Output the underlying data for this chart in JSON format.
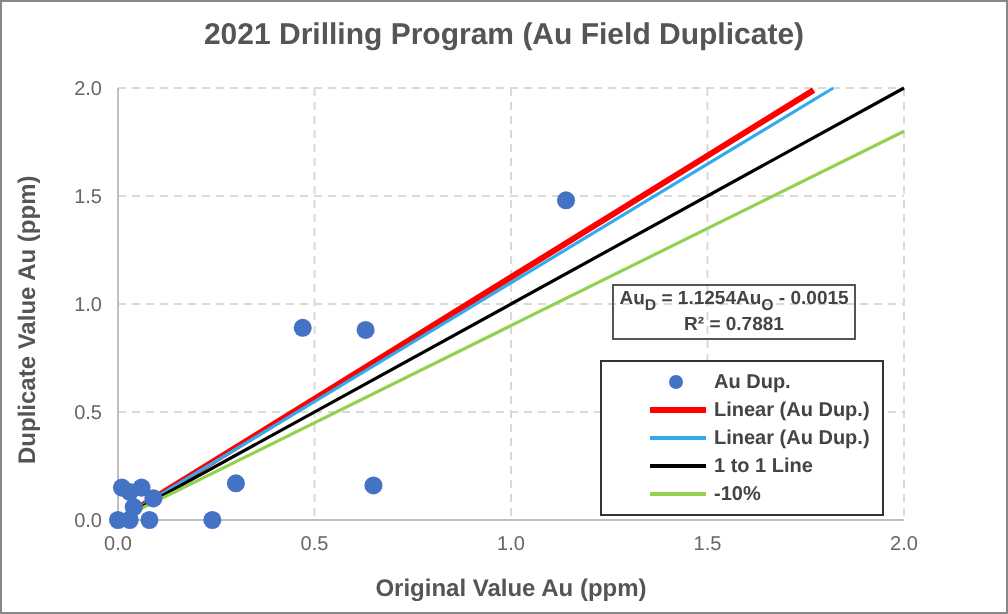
{
  "chart_data": {
    "type": "scatter",
    "title": "2021 Drilling Program (Au Field Duplicate)",
    "xlabel": "Original Value Au (ppm)",
    "ylabel": "Duplicate Value Au (ppm)",
    "xlim": [
      0,
      2
    ],
    "ylim": [
      0,
      2
    ],
    "xticks": [
      {
        "value": 0,
        "label": "0.0"
      },
      {
        "value": 0.5,
        "label": "0.5"
      },
      {
        "value": 1,
        "label": "1.0"
      },
      {
        "value": 1.5,
        "label": "1.5"
      },
      {
        "value": 2,
        "label": "2.0"
      }
    ],
    "yticks": [
      {
        "value": 0,
        "label": "0.0"
      },
      {
        "value": 0.5,
        "label": "0.5"
      },
      {
        "value": 1,
        "label": "1.0"
      },
      {
        "value": 1.5,
        "label": "1.5"
      },
      {
        "value": 2,
        "label": "2.0"
      }
    ],
    "grid": true,
    "legend": "bottom right",
    "annotations": [
      "Au$_{D}$ = 1.1254Au$_{O}$ - 0.0015\nR² = 0.7881"
    ],
    "series": [
      {
        "name": "Au Dup.",
        "color": "#4472c4",
        "x": [
          0.01,
          0.03,
          0.06,
          0,
          0.03,
          0.04,
          0.08,
          0.09,
          0.24,
          0.3,
          0.47,
          0.63,
          0.65,
          1.14
        ],
        "values": [
          0.15,
          0.13,
          0.15,
          0,
          0,
          0.06,
          0,
          0.1,
          0,
          0.17,
          0.89,
          0.88,
          0.16,
          1.48
        ]
      },
      {
        "name": "Linear (Au Dup.)",
        "type": "line",
        "color": "#ff0000",
        "x": [
          0.01,
          1.77
        ],
        "values": [
          0.01,
          1.99
        ]
      },
      {
        "name": "Linear (Au Dup.)",
        "type": "line",
        "color": "#33aaee",
        "x": [
          0.01,
          1.82
        ],
        "values": [
          0.01,
          2.0
        ]
      },
      {
        "name": "1 to 1 Line",
        "type": "line",
        "color": "#000000",
        "x": [
          0,
          2
        ],
        "values": [
          0,
          2
        ]
      },
      {
        "name": "-10%",
        "type": "line",
        "color": "#92d050",
        "x": [
          0,
          2
        ],
        "values": [
          0,
          1.8
        ]
      }
    ]
  }
}
